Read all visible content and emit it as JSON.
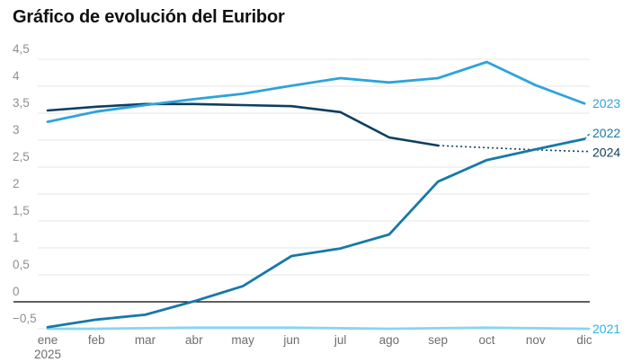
{
  "chart_data": {
    "type": "line",
    "title": "Gráfico de evolución del Euribor",
    "xlabel": "",
    "ylabel": "",
    "ylim": [
      -0.5,
      4.5
    ],
    "grid": "horizontal",
    "zero_line": true,
    "legend_position": "right-edge-inline-labels",
    "x_categories": [
      "ene",
      "feb",
      "mar",
      "abr",
      "may",
      "jun",
      "jul",
      "ago",
      "sep",
      "oct",
      "nov",
      "dic"
    ],
    "x_first_tick_year": "2025",
    "y_tick_labels": [
      "4,5",
      "4",
      "3,5",
      "3",
      "2,5",
      "2",
      "1,5",
      "1",
      "0,5",
      "0",
      "−0,5"
    ],
    "y_tick_values": [
      4.5,
      4,
      3.5,
      3,
      2.5,
      2,
      1.5,
      1,
      0.5,
      0,
      -0.5
    ],
    "series": [
      {
        "name": "2023",
        "color": "#2EA3DB",
        "label_color": "#2EA3DB",
        "style": "solid",
        "values": [
          3.34,
          3.53,
          3.65,
          3.76,
          3.86,
          4.01,
          4.15,
          4.07,
          4.15,
          4.45,
          4.02,
          3.68
        ]
      },
      {
        "name": "2022",
        "color": "#1779A8",
        "label_color": "#1779A8",
        "style": "solid",
        "leader": "dashed",
        "values": [
          -0.47,
          -0.33,
          -0.24,
          0.01,
          0.29,
          0.85,
          0.99,
          1.25,
          2.23,
          2.63,
          2.83,
          3.02
        ]
      },
      {
        "name": "2024",
        "color": "#0E3E60",
        "label_color": "#0E3E60",
        "style": "solid-then-dotted",
        "dotted_from_index": 8,
        "values": [
          3.55,
          3.62,
          3.67,
          3.67,
          3.65,
          3.63,
          3.52,
          3.05,
          2.9,
          2.86,
          2.82,
          2.79
        ]
      },
      {
        "name": "2021",
        "color": "#86D5F3",
        "label_color": "#29B2E8",
        "style": "solid",
        "values": [
          -0.5,
          -0.5,
          -0.49,
          -0.48,
          -0.48,
          -0.48,
          -0.49,
          -0.5,
          -0.49,
          -0.48,
          -0.49,
          -0.5
        ]
      }
    ],
    "colors": {
      "title": "#111111",
      "y_axis_label": "#8f8f8f",
      "x_axis_label": "#6e6e6e",
      "gridline": "#e6e6e6",
      "zero_line": "#000000",
      "background": "#ffffff"
    }
  }
}
